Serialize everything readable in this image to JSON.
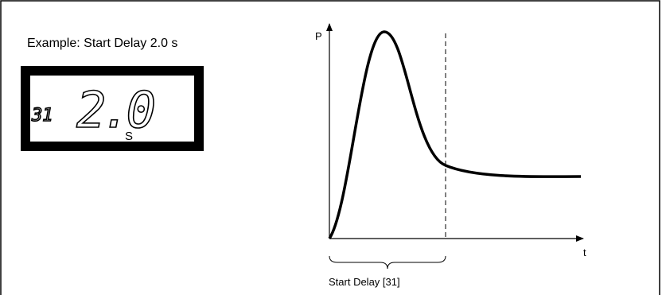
{
  "example_label": "Example: Start Delay 2.0 s",
  "display": {
    "parameter": "31",
    "value": "2.0",
    "unit": "S"
  },
  "graph": {
    "y_axis_label": "P",
    "x_axis_label": "t",
    "brace_label": "Start Delay [31]"
  }
}
